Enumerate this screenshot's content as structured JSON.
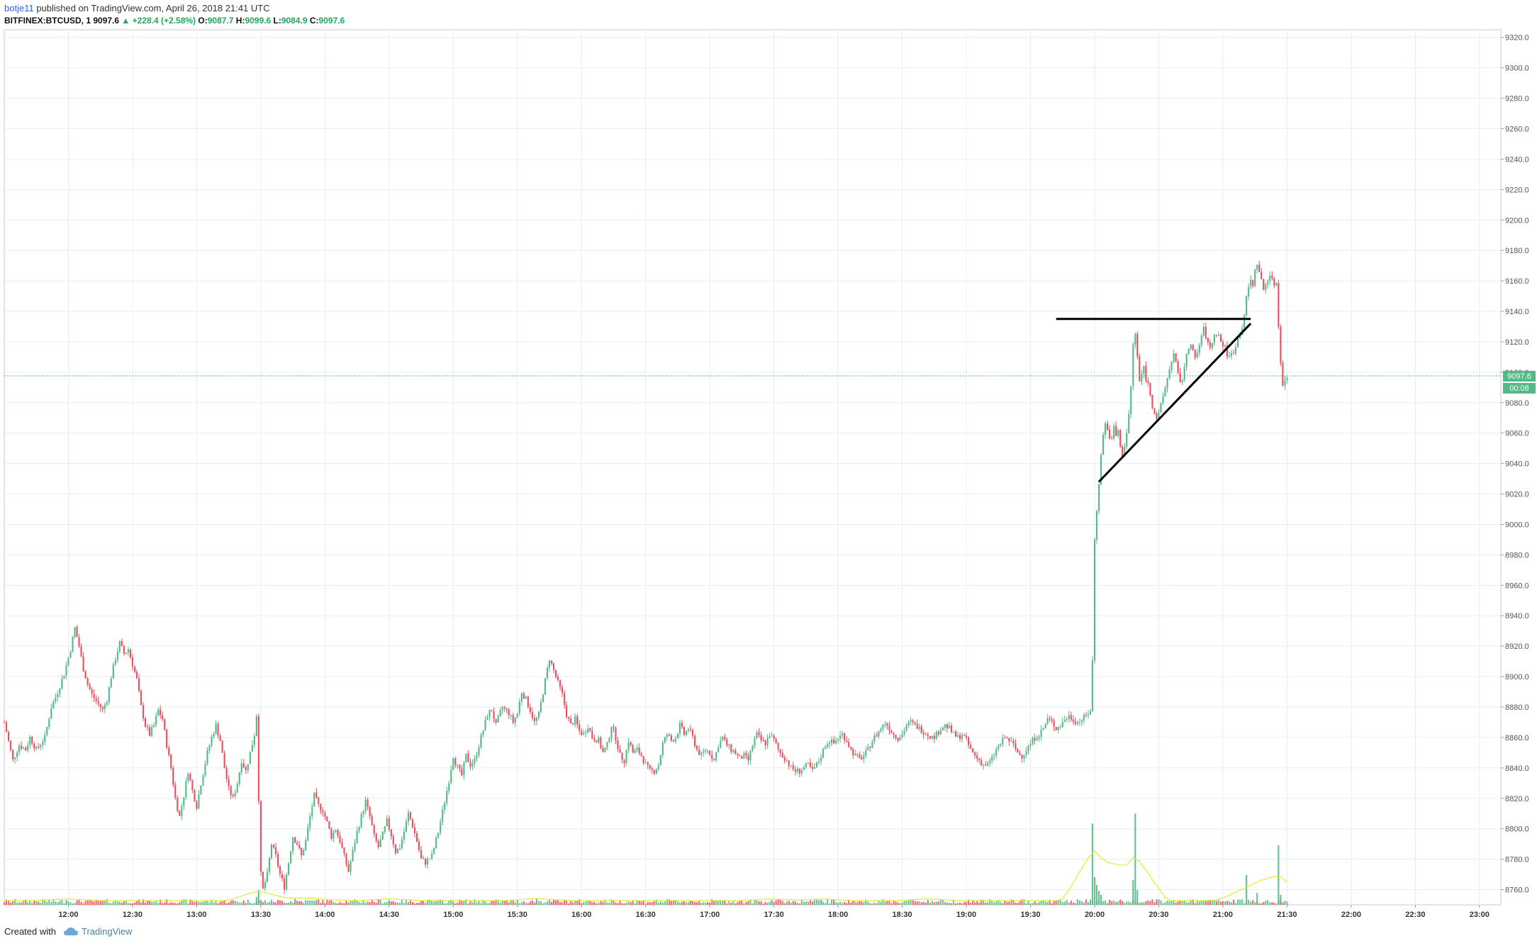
{
  "header": {
    "user": "botje11",
    "published": "published on TradingView.com, April 26, 2018 21:41 UTC",
    "symbol": "BITFINEX:BTCUSD, 1",
    "last": "9097.6",
    "change": "+228.4 (+2.58%)",
    "o_label": "O:",
    "o_value": "9087.7",
    "h_label": "H:",
    "h_value": "9099.6",
    "l_label": "L:",
    "l_value": "9084.9",
    "c_label": "C:",
    "c_value": "9097.6"
  },
  "price_tag": {
    "value": "9097.6",
    "countdown": "00:08"
  },
  "footer": {
    "created_with": "Created with",
    "brand": "TradingView"
  },
  "colors": {
    "up": "#53b987",
    "down": "#eb4d5c",
    "grid": "#e6eef3",
    "axis_text": "#555555",
    "ma_line": "#e8e830",
    "current_price_line": "#53b987",
    "drawing": "#000000"
  },
  "chart_data": {
    "type": "candlestick",
    "ylim": [
      8750,
      9325
    ],
    "y_ticks": [
      8760,
      8780,
      8800,
      8820,
      8840,
      8860,
      8880,
      8900,
      8920,
      8940,
      8960,
      8980,
      9000,
      9020,
      9040,
      9060,
      9080,
      9100,
      9120,
      9140,
      9160,
      9180,
      9200,
      9220,
      9240,
      9260,
      9280,
      9300,
      9320
    ],
    "y_tick_labels": [
      "8760.0",
      "8780.0",
      "8800.0",
      "8820.0",
      "8840.0",
      "8860.0",
      "8880.0",
      "8900.0",
      "8920.0",
      "8940.0",
      "8960.0",
      "8980.0",
      "9000.0",
      "9020.0",
      "9040.0",
      "9060.0",
      "9080.0",
      "9100.0",
      "9120.0",
      "9140.0",
      "9160.0",
      "9180.0",
      "9200.0",
      "9220.0",
      "9240.0",
      "9260.0",
      "9280.0",
      "9300.0",
      "9320.0"
    ],
    "x_range_minutes": [
      690,
      1390
    ],
    "x_ticks": [
      {
        "t": 720,
        "label": "12:00"
      },
      {
        "t": 750,
        "label": "12:30"
      },
      {
        "t": 780,
        "label": "13:00"
      },
      {
        "t": 810,
        "label": "13:30"
      },
      {
        "t": 840,
        "label": "14:00"
      },
      {
        "t": 870,
        "label": "14:30"
      },
      {
        "t": 900,
        "label": "15:00"
      },
      {
        "t": 930,
        "label": "15:30"
      },
      {
        "t": 960,
        "label": "16:00"
      },
      {
        "t": 990,
        "label": "16:30"
      },
      {
        "t": 1020,
        "label": "17:00"
      },
      {
        "t": 1050,
        "label": "17:30"
      },
      {
        "t": 1080,
        "label": "18:00"
      },
      {
        "t": 1110,
        "label": "18:30"
      },
      {
        "t": 1140,
        "label": "19:00"
      },
      {
        "t": 1170,
        "label": "19:30"
      },
      {
        "t": 1200,
        "label": "20:00"
      },
      {
        "t": 1230,
        "label": "20:30"
      },
      {
        "t": 1260,
        "label": "21:00"
      },
      {
        "t": 1290,
        "label": "21:30"
      },
      {
        "t": 1320,
        "label": "22:00"
      },
      {
        "t": 1350,
        "label": "22:30"
      },
      {
        "t": 1380,
        "label": "23:00"
      }
    ],
    "close_path": [
      [
        690,
        8870
      ],
      [
        694,
        8845
      ],
      [
        697,
        8855
      ],
      [
        700,
        8852
      ],
      [
        702,
        8860
      ],
      [
        705,
        8852
      ],
      [
        709,
        8860
      ],
      [
        712,
        8880
      ],
      [
        715,
        8890
      ],
      [
        718,
        8902
      ],
      [
        721,
        8918
      ],
      [
        723,
        8932
      ],
      [
        725,
        8920
      ],
      [
        727,
        8905
      ],
      [
        729,
        8895
      ],
      [
        731,
        8888
      ],
      [
        734,
        8882
      ],
      [
        736,
        8878
      ],
      [
        738,
        8885
      ],
      [
        740,
        8900
      ],
      [
        742,
        8912
      ],
      [
        744,
        8922
      ],
      [
        746,
        8915
      ],
      [
        748,
        8918
      ],
      [
        750,
        8908
      ],
      [
        752,
        8898
      ],
      [
        754,
        8880
      ],
      [
        756,
        8868
      ],
      [
        758,
        8862
      ],
      [
        760,
        8868
      ],
      [
        762,
        8878
      ],
      [
        764,
        8872
      ],
      [
        766,
        8855
      ],
      [
        768,
        8840
      ],
      [
        770,
        8820
      ],
      [
        772,
        8808
      ],
      [
        774,
        8822
      ],
      [
        776,
        8838
      ],
      [
        778,
        8825
      ],
      [
        780,
        8815
      ],
      [
        782,
        8830
      ],
      [
        785,
        8850
      ],
      [
        787,
        8860
      ],
      [
        789,
        8868
      ],
      [
        791,
        8858
      ],
      [
        793,
        8840
      ],
      [
        795,
        8826
      ],
      [
        797,
        8820
      ],
      [
        799,
        8830
      ],
      [
        801,
        8845
      ],
      [
        803,
        8838
      ],
      [
        805,
        8850
      ],
      [
        807,
        8862
      ],
      [
        808,
        8875
      ],
      [
        809,
        8820
      ],
      [
        810,
        8770
      ],
      [
        811,
        8760
      ],
      [
        813,
        8770
      ],
      [
        815,
        8790
      ],
      [
        817,
        8782
      ],
      [
        819,
        8770
      ],
      [
        821,
        8762
      ],
      [
        823,
        8778
      ],
      [
        825,
        8795
      ],
      [
        827,
        8790
      ],
      [
        829,
        8782
      ],
      [
        831,
        8792
      ],
      [
        833,
        8808
      ],
      [
        835,
        8822
      ],
      [
        837,
        8815
      ],
      [
        839,
        8812
      ],
      [
        841,
        8804
      ],
      [
        843,
        8795
      ],
      [
        845,
        8800
      ],
      [
        847,
        8792
      ],
      [
        849,
        8782
      ],
      [
        851,
        8772
      ],
      [
        853,
        8785
      ],
      [
        855,
        8798
      ],
      [
        857,
        8808
      ],
      [
        859,
        8818
      ],
      [
        861,
        8808
      ],
      [
        863,
        8795
      ],
      [
        865,
        8788
      ],
      [
        867,
        8796
      ],
      [
        869,
        8805
      ],
      [
        871,
        8796
      ],
      [
        873,
        8785
      ],
      [
        875,
        8788
      ],
      [
        877,
        8798
      ],
      [
        879,
        8810
      ],
      [
        881,
        8802
      ],
      [
        883,
        8792
      ],
      [
        885,
        8780
      ],
      [
        887,
        8778
      ],
      [
        890,
        8782
      ],
      [
        893,
        8798
      ],
      [
        896,
        8818
      ],
      [
        898,
        8832
      ],
      [
        900,
        8848
      ],
      [
        902,
        8840
      ],
      [
        904,
        8835
      ],
      [
        906,
        8848
      ],
      [
        908,
        8842
      ],
      [
        910,
        8845
      ],
      [
        913,
        8860
      ],
      [
        916,
        8875
      ],
      [
        918,
        8878
      ],
      [
        920,
        8868
      ],
      [
        923,
        8880
      ],
      [
        926,
        8876
      ],
      [
        928,
        8870
      ],
      [
        930,
        8876
      ],
      [
        932,
        8890
      ],
      [
        934,
        8885
      ],
      [
        936,
        8878
      ],
      [
        938,
        8870
      ],
      [
        940,
        8875
      ],
      [
        942,
        8890
      ],
      [
        945,
        8912
      ],
      [
        947,
        8904
      ],
      [
        949,
        8896
      ],
      [
        951,
        8888
      ],
      [
        953,
        8875
      ],
      [
        955,
        8868
      ],
      [
        957,
        8872
      ],
      [
        959,
        8864
      ],
      [
        961,
        8862
      ],
      [
        963,
        8868
      ],
      [
        965,
        8860
      ],
      [
        968,
        8858
      ],
      [
        970,
        8850
      ],
      [
        972,
        8855
      ],
      [
        974,
        8868
      ],
      [
        976,
        8860
      ],
      [
        978,
        8848
      ],
      [
        980,
        8845
      ],
      [
        982,
        8858
      ],
      [
        984,
        8850
      ],
      [
        986,
        8852
      ],
      [
        988,
        8848
      ],
      [
        990,
        8842
      ],
      [
        992,
        8838
      ],
      [
        994,
        8838
      ],
      [
        996,
        8842
      ],
      [
        998,
        8856
      ],
      [
        1000,
        8862
      ],
      [
        1002,
        8858
      ],
      [
        1004,
        8860
      ],
      [
        1006,
        8868
      ],
      [
        1008,
        8862
      ],
      [
        1010,
        8866
      ],
      [
        1012,
        8860
      ],
      [
        1014,
        8852
      ],
      [
        1016,
        8848
      ],
      [
        1018,
        8852
      ],
      [
        1020,
        8850
      ],
      [
        1022,
        8845
      ],
      [
        1024,
        8855
      ],
      [
        1026,
        8860
      ],
      [
        1028,
        8855
      ],
      [
        1030,
        8852
      ],
      [
        1032,
        8850
      ],
      [
        1034,
        8846
      ],
      [
        1036,
        8848
      ],
      [
        1038,
        8845
      ],
      [
        1040,
        8855
      ],
      [
        1042,
        8862
      ],
      [
        1044,
        8858
      ],
      [
        1046,
        8856
      ],
      [
        1048,
        8862
      ],
      [
        1050,
        8858
      ],
      [
        1052,
        8852
      ],
      [
        1054,
        8848
      ],
      [
        1056,
        8845
      ],
      [
        1058,
        8840
      ],
      [
        1060,
        8838
      ],
      [
        1062,
        8838
      ],
      [
        1064,
        8840
      ],
      [
        1066,
        8842
      ],
      [
        1068,
        8838
      ],
      [
        1070,
        8842
      ],
      [
        1072,
        8848
      ],
      [
        1074,
        8855
      ],
      [
        1076,
        8858
      ],
      [
        1078,
        8856
      ],
      [
        1080,
        8860
      ],
      [
        1082,
        8862
      ],
      [
        1084,
        8858
      ],
      [
        1086,
        8852
      ],
      [
        1088,
        8848
      ],
      [
        1090,
        8846
      ],
      [
        1092,
        8848
      ],
      [
        1094,
        8852
      ],
      [
        1096,
        8858
      ],
      [
        1098,
        8862
      ],
      [
        1100,
        8866
      ],
      [
        1102,
        8870
      ],
      [
        1104,
        8866
      ],
      [
        1106,
        8862
      ],
      [
        1108,
        8860
      ],
      [
        1110,
        8862
      ],
      [
        1112,
        8868
      ],
      [
        1114,
        8870
      ],
      [
        1116,
        8868
      ],
      [
        1118,
        8866
      ],
      [
        1120,
        8864
      ],
      [
        1122,
        8862
      ],
      [
        1124,
        8860
      ],
      [
        1126,
        8862
      ],
      [
        1128,
        8866
      ],
      [
        1130,
        8868
      ],
      [
        1132,
        8866
      ],
      [
        1134,
        8862
      ],
      [
        1136,
        8860
      ],
      [
        1138,
        8862
      ],
      [
        1140,
        8858
      ],
      [
        1142,
        8852
      ],
      [
        1144,
        8848
      ],
      [
        1146,
        8845
      ],
      [
        1148,
        8842
      ],
      [
        1150,
        8842
      ],
      [
        1152,
        8846
      ],
      [
        1154,
        8852
      ],
      [
        1156,
        8856
      ],
      [
        1158,
        8860
      ],
      [
        1160,
        8858
      ],
      [
        1162,
        8855
      ],
      [
        1164,
        8850
      ],
      [
        1166,
        8848
      ],
      [
        1168,
        8852
      ],
      [
        1170,
        8856
      ],
      [
        1172,
        8860
      ],
      [
        1174,
        8862
      ],
      [
        1176,
        8866
      ],
      [
        1178,
        8872
      ],
      [
        1180,
        8870
      ],
      [
        1182,
        8866
      ],
      [
        1184,
        8868
      ],
      [
        1186,
        8872
      ],
      [
        1188,
        8874
      ],
      [
        1190,
        8872
      ],
      [
        1192,
        8870
      ],
      [
        1194,
        8872
      ],
      [
        1196,
        8874
      ],
      [
        1197,
        8876
      ],
      [
        1198,
        8878
      ],
      [
        1199,
        8910
      ],
      [
        1200,
        8990
      ],
      [
        1201,
        9010
      ],
      [
        1202,
        9028
      ],
      [
        1203,
        9045
      ],
      [
        1204,
        9060
      ],
      [
        1205,
        9066
      ],
      [
        1206,
        9062
      ],
      [
        1207,
        9058
      ],
      [
        1208,
        9055
      ],
      [
        1209,
        9064
      ],
      [
        1210,
        9058
      ],
      [
        1211,
        9062
      ],
      [
        1212,
        9050
      ],
      [
        1213,
        9046
      ],
      [
        1214,
        9052
      ],
      [
        1215,
        9060
      ],
      [
        1216,
        9072
      ],
      [
        1217,
        9090
      ],
      [
        1218,
        9118
      ],
      [
        1219,
        9125
      ],
      [
        1220,
        9110
      ],
      [
        1221,
        9094
      ],
      [
        1222,
        9098
      ],
      [
        1223,
        9104
      ],
      [
        1224,
        9096
      ],
      [
        1225,
        9092
      ],
      [
        1226,
        9086
      ],
      [
        1227,
        9078
      ],
      [
        1228,
        9074
      ],
      [
        1229,
        9070
      ],
      [
        1230,
        9072
      ],
      [
        1231,
        9078
      ],
      [
        1232,
        9084
      ],
      [
        1233,
        9090
      ],
      [
        1234,
        9096
      ],
      [
        1235,
        9102
      ],
      [
        1236,
        9108
      ],
      [
        1237,
        9112
      ],
      [
        1238,
        9106
      ],
      [
        1239,
        9098
      ],
      [
        1240,
        9092
      ],
      [
        1241,
        9096
      ],
      [
        1242,
        9104
      ],
      [
        1243,
        9110
      ],
      [
        1244,
        9116
      ],
      [
        1245,
        9120
      ],
      [
        1246,
        9114
      ],
      [
        1247,
        9108
      ],
      [
        1248,
        9112
      ],
      [
        1249,
        9118
      ],
      [
        1250,
        9124
      ],
      [
        1251,
        9128
      ],
      [
        1252,
        9124
      ],
      [
        1253,
        9118
      ],
      [
        1254,
        9116
      ],
      [
        1255,
        9120
      ],
      [
        1256,
        9124
      ],
      [
        1257,
        9126
      ],
      [
        1258,
        9124
      ],
      [
        1259,
        9120
      ],
      [
        1260,
        9118
      ],
      [
        1261,
        9116
      ],
      [
        1262,
        9112
      ],
      [
        1263,
        9110
      ],
      [
        1264,
        9112
      ],
      [
        1265,
        9114
      ],
      [
        1266,
        9118
      ],
      [
        1267,
        9122
      ],
      [
        1268,
        9126
      ],
      [
        1269,
        9130
      ],
      [
        1270,
        9138
      ],
      [
        1271,
        9148
      ],
      [
        1272,
        9156
      ],
      [
        1273,
        9160
      ],
      [
        1274,
        9158
      ],
      [
        1275,
        9166
      ],
      [
        1276,
        9172
      ],
      [
        1277,
        9166
      ],
      [
        1278,
        9160
      ],
      [
        1279,
        9154
      ],
      [
        1280,
        9158
      ],
      [
        1281,
        9162
      ],
      [
        1282,
        9164
      ],
      [
        1283,
        9160
      ],
      [
        1284,
        9158
      ],
      [
        1285,
        9159
      ],
      [
        1286,
        9130
      ],
      [
        1287,
        9108
      ],
      [
        1288,
        9092
      ],
      [
        1289,
        9094
      ],
      [
        1290,
        9097.6
      ]
    ],
    "volume_spikes_minutes": [
      {
        "t": 719,
        "v": 0.05
      },
      {
        "t": 808,
        "v": 0.08
      },
      {
        "t": 809,
        "v": 0.15
      },
      {
        "t": 810,
        "v": 0.05
      },
      {
        "t": 826,
        "v": 0.06
      },
      {
        "t": 836,
        "v": 0.05
      },
      {
        "t": 870,
        "v": 0.05
      },
      {
        "t": 939,
        "v": 0.06
      },
      {
        "t": 1049,
        "v": 0.05
      },
      {
        "t": 1072,
        "v": 0.05
      },
      {
        "t": 1122,
        "v": 0.05
      },
      {
        "t": 1199,
        "v": 0.82
      },
      {
        "t": 1200,
        "v": 0.28
      },
      {
        "t": 1201,
        "v": 0.2
      },
      {
        "t": 1202,
        "v": 0.14
      },
      {
        "t": 1203,
        "v": 0.1
      },
      {
        "t": 1218,
        "v": 0.25
      },
      {
        "t": 1219,
        "v": 0.92
      },
      {
        "t": 1220,
        "v": 0.15
      },
      {
        "t": 1271,
        "v": 0.3
      },
      {
        "t": 1276,
        "v": 0.12
      },
      {
        "t": 1286,
        "v": 0.6
      },
      {
        "t": 1287,
        "v": 0.1
      }
    ],
    "drawings": [
      {
        "type": "hline",
        "t1": 1182,
        "t2": 1273,
        "price": 9135
      },
      {
        "type": "trend",
        "t1": 1202,
        "p1": 9028,
        "t2": 1273,
        "p2": 9132
      }
    ],
    "current_price": 9097.6
  }
}
